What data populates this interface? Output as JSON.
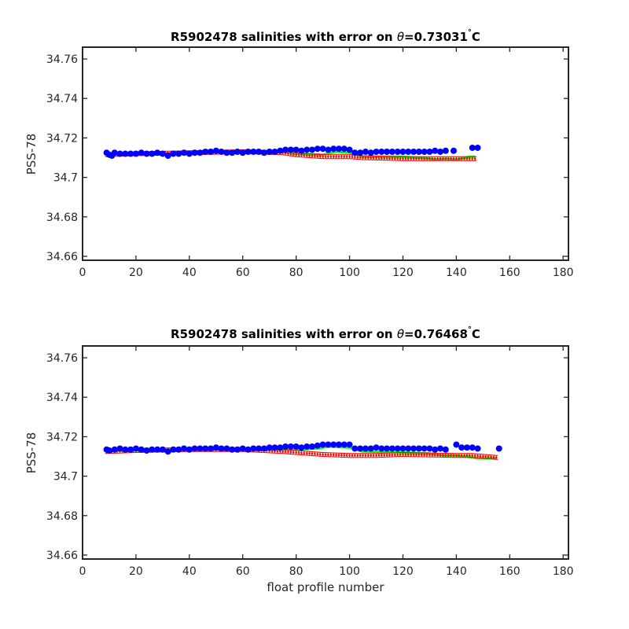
{
  "colors": {
    "raw": "#0000ff",
    "calibrated": "#ff0000",
    "mapped": "#00ff00",
    "axis": "#262626"
  },
  "chart_data": [
    {
      "type": "scatter",
      "title_prefix": "R5902478 salinities with error on ",
      "title_theta": "θ",
      "title_value": "=0.73031",
      "title_degree": "°",
      "title_unit": "C",
      "xlabel": "",
      "ylabel": "PSS-78",
      "xlim": [
        0,
        182
      ],
      "ylim": [
        34.658,
        34.766
      ],
      "xticks": [
        0,
        20,
        40,
        60,
        80,
        100,
        120,
        140,
        160,
        180
      ],
      "xtick_labels": [
        "0",
        "20",
        "40",
        "60",
        "80",
        "100",
        "120",
        "140",
        "160",
        "180"
      ],
      "yticks": [
        34.66,
        34.68,
        34.7,
        34.72,
        34.74,
        34.76
      ],
      "ytick_labels": [
        "34.66",
        "34.68",
        "34.7",
        "34.72",
        "34.74",
        "34.76"
      ],
      "x_start": 9,
      "mapped": [
        [
          9,
          34.7115
        ],
        [
          20,
          34.712
        ],
        [
          40,
          34.7125
        ],
        [
          60,
          34.713
        ],
        [
          75,
          34.713
        ],
        [
          80,
          34.712
        ],
        [
          90,
          34.7115
        ],
        [
          95,
          34.713
        ],
        [
          100,
          34.7125
        ],
        [
          105,
          34.7105
        ],
        [
          120,
          34.7105
        ],
        [
          130,
          34.7095
        ],
        [
          133,
          34.709
        ],
        [
          136,
          34.7095
        ],
        [
          140,
          34.709
        ],
        [
          145,
          34.7105
        ],
        [
          147,
          34.7105
        ]
      ],
      "calibrated": [
        [
          9,
          34.7115
        ],
        [
          20,
          34.712
        ],
        [
          40,
          34.7125
        ],
        [
          60,
          34.713
        ],
        [
          75,
          34.7125
        ],
        [
          80,
          34.7115
        ],
        [
          90,
          34.7105
        ],
        [
          100,
          34.7105
        ],
        [
          105,
          34.71
        ],
        [
          120,
          34.7095
        ],
        [
          135,
          34.7095
        ],
        [
          147,
          34.7095
        ]
      ],
      "raw": [
        [
          9,
          34.7125
        ],
        [
          10,
          34.7115
        ],
        [
          11,
          34.711
        ],
        [
          12,
          34.7125
        ],
        [
          14,
          34.712
        ],
        [
          16,
          34.712
        ],
        [
          18,
          34.712
        ],
        [
          20,
          34.712
        ],
        [
          22,
          34.7125
        ],
        [
          24,
          34.712
        ],
        [
          26,
          34.712
        ],
        [
          28,
          34.7125
        ],
        [
          30,
          34.712
        ],
        [
          32,
          34.711
        ],
        [
          34,
          34.712
        ],
        [
          36,
          34.712
        ],
        [
          38,
          34.7125
        ],
        [
          40,
          34.712
        ],
        [
          42,
          34.7125
        ],
        [
          44,
          34.7125
        ],
        [
          46,
          34.713
        ],
        [
          48,
          34.713
        ],
        [
          50,
          34.7135
        ],
        [
          52,
          34.713
        ],
        [
          54,
          34.7125
        ],
        [
          56,
          34.7125
        ],
        [
          58,
          34.713
        ],
        [
          60,
          34.7125
        ],
        [
          62,
          34.713
        ],
        [
          64,
          34.713
        ],
        [
          66,
          34.713
        ],
        [
          68,
          34.7125
        ],
        [
          70,
          34.713
        ],
        [
          72,
          34.713
        ],
        [
          74,
          34.7135
        ],
        [
          76,
          34.714
        ],
        [
          78,
          34.714
        ],
        [
          80,
          34.714
        ],
        [
          82,
          34.7135
        ],
        [
          84,
          34.714
        ],
        [
          86,
          34.714
        ],
        [
          88,
          34.7145
        ],
        [
          90,
          34.7145
        ],
        [
          92,
          34.714
        ],
        [
          94,
          34.7145
        ],
        [
          96,
          34.7145
        ],
        [
          98,
          34.7145
        ],
        [
          100,
          34.714
        ],
        [
          102,
          34.7125
        ],
        [
          104,
          34.7125
        ],
        [
          106,
          34.713
        ],
        [
          108,
          34.7125
        ],
        [
          110,
          34.713
        ],
        [
          112,
          34.713
        ],
        [
          114,
          34.713
        ],
        [
          116,
          34.713
        ],
        [
          118,
          34.713
        ],
        [
          120,
          34.713
        ],
        [
          122,
          34.713
        ],
        [
          124,
          34.713
        ],
        [
          126,
          34.713
        ],
        [
          128,
          34.713
        ],
        [
          130,
          34.713
        ],
        [
          132,
          34.7135
        ],
        [
          134,
          34.713
        ],
        [
          136,
          34.7135
        ],
        [
          139,
          34.7135
        ],
        [
          146,
          34.715
        ],
        [
          148,
          34.715
        ]
      ]
    },
    {
      "type": "scatter",
      "title_prefix": "R5902478 salinities with error on ",
      "title_theta": "θ",
      "title_value": "=0.76468",
      "title_degree": "°",
      "title_unit": "C",
      "xlabel": "float profile number",
      "ylabel": "PSS-78",
      "xlim": [
        0,
        182
      ],
      "ylim": [
        34.658,
        34.766
      ],
      "xticks": [
        0,
        20,
        40,
        60,
        80,
        100,
        120,
        140,
        160,
        180
      ],
      "xtick_labels": [
        "0",
        "20",
        "40",
        "60",
        "80",
        "100",
        "120",
        "140",
        "160",
        "180"
      ],
      "yticks": [
        34.66,
        34.68,
        34.7,
        34.72,
        34.74,
        34.76
      ],
      "ytick_labels": [
        "34.66",
        "34.68",
        "34.7",
        "34.72",
        "34.74",
        "34.76"
      ],
      "x_start": 9,
      "mapped": [
        [
          9,
          34.713
        ],
        [
          20,
          34.713
        ],
        [
          40,
          34.7135
        ],
        [
          60,
          34.7135
        ],
        [
          72,
          34.7135
        ],
        [
          80,
          34.7135
        ],
        [
          88,
          34.714
        ],
        [
          92,
          34.715
        ],
        [
          100,
          34.7145
        ],
        [
          105,
          34.7125
        ],
        [
          120,
          34.712
        ],
        [
          130,
          34.7115
        ],
        [
          135,
          34.7105
        ],
        [
          140,
          34.7105
        ],
        [
          146,
          34.7095
        ],
        [
          148,
          34.709
        ],
        [
          155,
          34.709
        ]
      ],
      "calibrated": [
        [
          9,
          34.7125
        ],
        [
          20,
          34.713
        ],
        [
          40,
          34.7135
        ],
        [
          60,
          34.7135
        ],
        [
          75,
          34.7125
        ],
        [
          80,
          34.712
        ],
        [
          90,
          34.711
        ],
        [
          100,
          34.7105
        ],
        [
          110,
          34.7105
        ],
        [
          120,
          34.711
        ],
        [
          140,
          34.7105
        ],
        [
          146,
          34.7105
        ],
        [
          155,
          34.7095
        ]
      ],
      "raw": [
        [
          9,
          34.7135
        ],
        [
          10,
          34.713
        ],
        [
          12,
          34.7135
        ],
        [
          14,
          34.714
        ],
        [
          16,
          34.7135
        ],
        [
          18,
          34.7135
        ],
        [
          20,
          34.714
        ],
        [
          22,
          34.7135
        ],
        [
          24,
          34.713
        ],
        [
          26,
          34.7135
        ],
        [
          28,
          34.7135
        ],
        [
          30,
          34.7135
        ],
        [
          32,
          34.7125
        ],
        [
          34,
          34.7135
        ],
        [
          36,
          34.7135
        ],
        [
          38,
          34.714
        ],
        [
          40,
          34.7135
        ],
        [
          42,
          34.714
        ],
        [
          44,
          34.714
        ],
        [
          46,
          34.714
        ],
        [
          48,
          34.714
        ],
        [
          50,
          34.7145
        ],
        [
          52,
          34.714
        ],
        [
          54,
          34.714
        ],
        [
          56,
          34.7135
        ],
        [
          58,
          34.7135
        ],
        [
          60,
          34.714
        ],
        [
          62,
          34.7135
        ],
        [
          64,
          34.714
        ],
        [
          66,
          34.714
        ],
        [
          68,
          34.714
        ],
        [
          70,
          34.7145
        ],
        [
          72,
          34.7145
        ],
        [
          74,
          34.7145
        ],
        [
          76,
          34.715
        ],
        [
          78,
          34.715
        ],
        [
          80,
          34.715
        ],
        [
          82,
          34.7145
        ],
        [
          84,
          34.715
        ],
        [
          86,
          34.715
        ],
        [
          88,
          34.7155
        ],
        [
          90,
          34.716
        ],
        [
          92,
          34.716
        ],
        [
          94,
          34.716
        ],
        [
          96,
          34.716
        ],
        [
          98,
          34.716
        ],
        [
          100,
          34.716
        ],
        [
          102,
          34.714
        ],
        [
          104,
          34.714
        ],
        [
          106,
          34.714
        ],
        [
          108,
          34.714
        ],
        [
          110,
          34.7145
        ],
        [
          112,
          34.714
        ],
        [
          114,
          34.714
        ],
        [
          116,
          34.714
        ],
        [
          118,
          34.714
        ],
        [
          120,
          34.714
        ],
        [
          122,
          34.714
        ],
        [
          124,
          34.714
        ],
        [
          126,
          34.714
        ],
        [
          128,
          34.714
        ],
        [
          130,
          34.714
        ],
        [
          132,
          34.7135
        ],
        [
          134,
          34.714
        ],
        [
          136,
          34.7135
        ],
        [
          140,
          34.716
        ],
        [
          142,
          34.7145
        ],
        [
          144,
          34.7145
        ],
        [
          146,
          34.7145
        ],
        [
          148,
          34.714
        ],
        [
          156,
          34.714
        ]
      ]
    }
  ]
}
